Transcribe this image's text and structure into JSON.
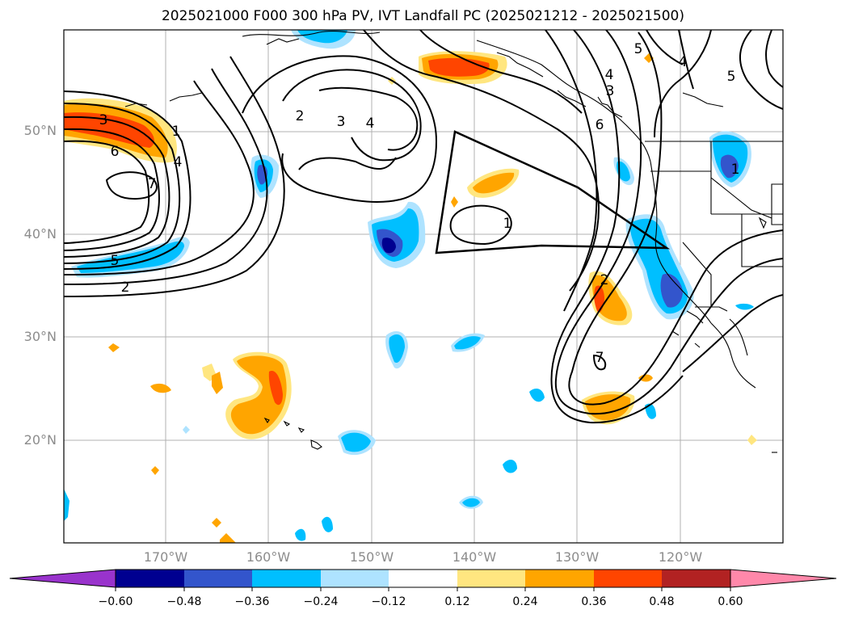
{
  "title": "2025021000 F000 300 hPa PV, IVT Landfall PC (2025021212 - 2025021500)",
  "lat_labels": [
    "50°N",
    "40°N",
    "30°N",
    "20°N"
  ],
  "lon_labels": [
    "170°W",
    "160°W",
    "150°W",
    "140°W",
    "130°W",
    "120°W"
  ],
  "colorbar": {
    "ticks": [
      "−0.60",
      "−0.48",
      "−0.36",
      "−0.24",
      "−0.12",
      "0.12",
      "0.24",
      "0.36",
      "0.48",
      "0.60"
    ],
    "colors": [
      "#9933cc",
      "#000090",
      "#3355cc",
      "#00bfff",
      "#aee3ff",
      "#ffffff",
      "#ffe680",
      "#ffa500",
      "#ff4500",
      "#b22222",
      "#ff88aa"
    ]
  },
  "contour_labels": [
    "3",
    "6",
    "1",
    "4",
    "7",
    "5",
    "2",
    "2",
    "3",
    "4",
    "1",
    "5",
    "4",
    "3",
    "6",
    "5",
    "2",
    "7",
    "4",
    "1"
  ]
}
